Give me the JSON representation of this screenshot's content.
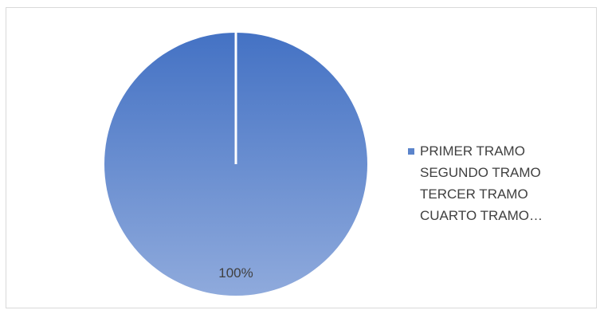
{
  "chart_data": {
    "type": "pie",
    "categories": [
      "PRIMER TRAMO",
      "SEGUNDO TRAMO",
      "TERCER TRAMO",
      "CUARTO TRAMO…"
    ],
    "values": [
      100,
      0,
      0,
      0
    ],
    "data_labels": [
      "100%"
    ],
    "colors": [
      "#4472c4",
      "#ed7d31",
      "#a5a5a5",
      "#ffc000"
    ],
    "legend_position": "right"
  }
}
